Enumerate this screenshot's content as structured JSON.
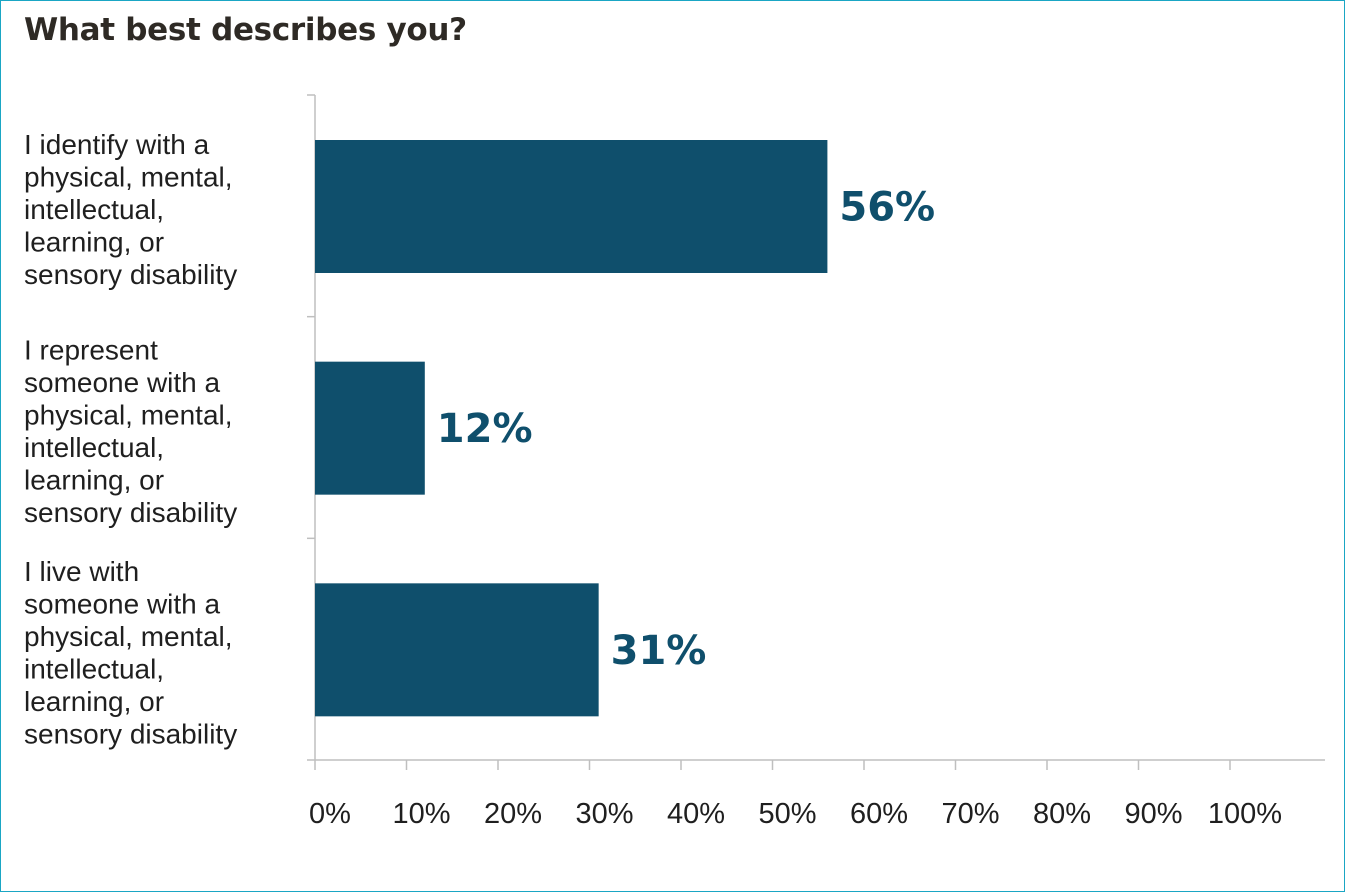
{
  "chart_data": {
    "type": "bar",
    "orientation": "horizontal",
    "title": "What best describes you?",
    "categories": [
      [
        "I identify with a",
        "physical, mental,",
        "intellectual,",
        "learning, or",
        "sensory disability"
      ],
      [
        "I represent",
        "someone with a",
        "physical, mental,",
        "intellectual,",
        "learning, or",
        "sensory disability"
      ],
      [
        "I live with",
        "someone with a",
        "physical, mental,",
        "intellectual,",
        "learning, or",
        "sensory disability"
      ]
    ],
    "values": [
      56,
      12,
      31
    ],
    "value_labels": [
      "56%",
      "12%",
      "31%"
    ],
    "xlim": [
      0,
      110
    ],
    "xticks": [
      0,
      10,
      20,
      30,
      40,
      50,
      60,
      70,
      80,
      90,
      100
    ],
    "xtick_labels": [
      "0%",
      "10%",
      "20%",
      "30%",
      "40%",
      "50%",
      "60%",
      "70%",
      "80%",
      "90%",
      "100%"
    ],
    "grid": false,
    "legend": "none",
    "colors": {
      "bar": "#0f4f6c",
      "value_label": "#0f4f6c",
      "axis": "#bfbfbf",
      "frame": "#1aa6c4"
    }
  }
}
